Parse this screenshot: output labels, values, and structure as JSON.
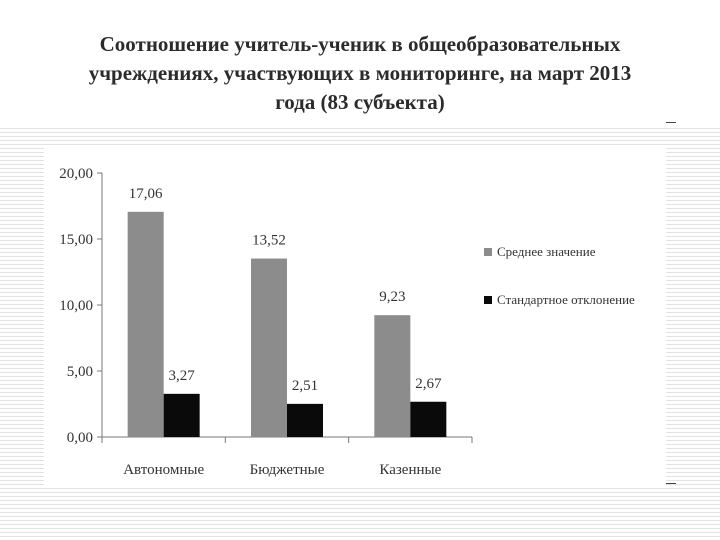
{
  "slide": {
    "title_lines": [
      "Соотношение учитель-ученик в общеобразовательных",
      "учреждениях, участвующих в мониторинге, на март 2013",
      "года (83 субъекта)"
    ]
  },
  "chart_data": {
    "type": "bar",
    "title": "Соотношение учитель-ученик в общеобразовательных учреждениях, участвующих в мониторинге, на март 2013 года (83 субъекта)",
    "categories": [
      "Автономные",
      "Бюджетные",
      "Казенные"
    ],
    "series": [
      {
        "name": "Среднее значение",
        "values": [
          17.06,
          13.52,
          9.23
        ],
        "labels": [
          "17,06",
          "13,52",
          "9,23"
        ],
        "color": "#8c8c8c"
      },
      {
        "name": "Стандартное отклонение",
        "values": [
          3.27,
          2.51,
          2.67
        ],
        "labels": [
          "3,27",
          "2,51",
          "2,67"
        ],
        "color": "#0a0a0a"
      }
    ],
    "ylim": [
      0,
      20
    ],
    "yticks": [
      0,
      5,
      10,
      15,
      20
    ],
    "ytick_labels": [
      "0,00",
      "5,00",
      "10,00",
      "15,00",
      "20,00"
    ],
    "xlabel": "",
    "ylabel": "",
    "grid": false,
    "legend": "right"
  }
}
